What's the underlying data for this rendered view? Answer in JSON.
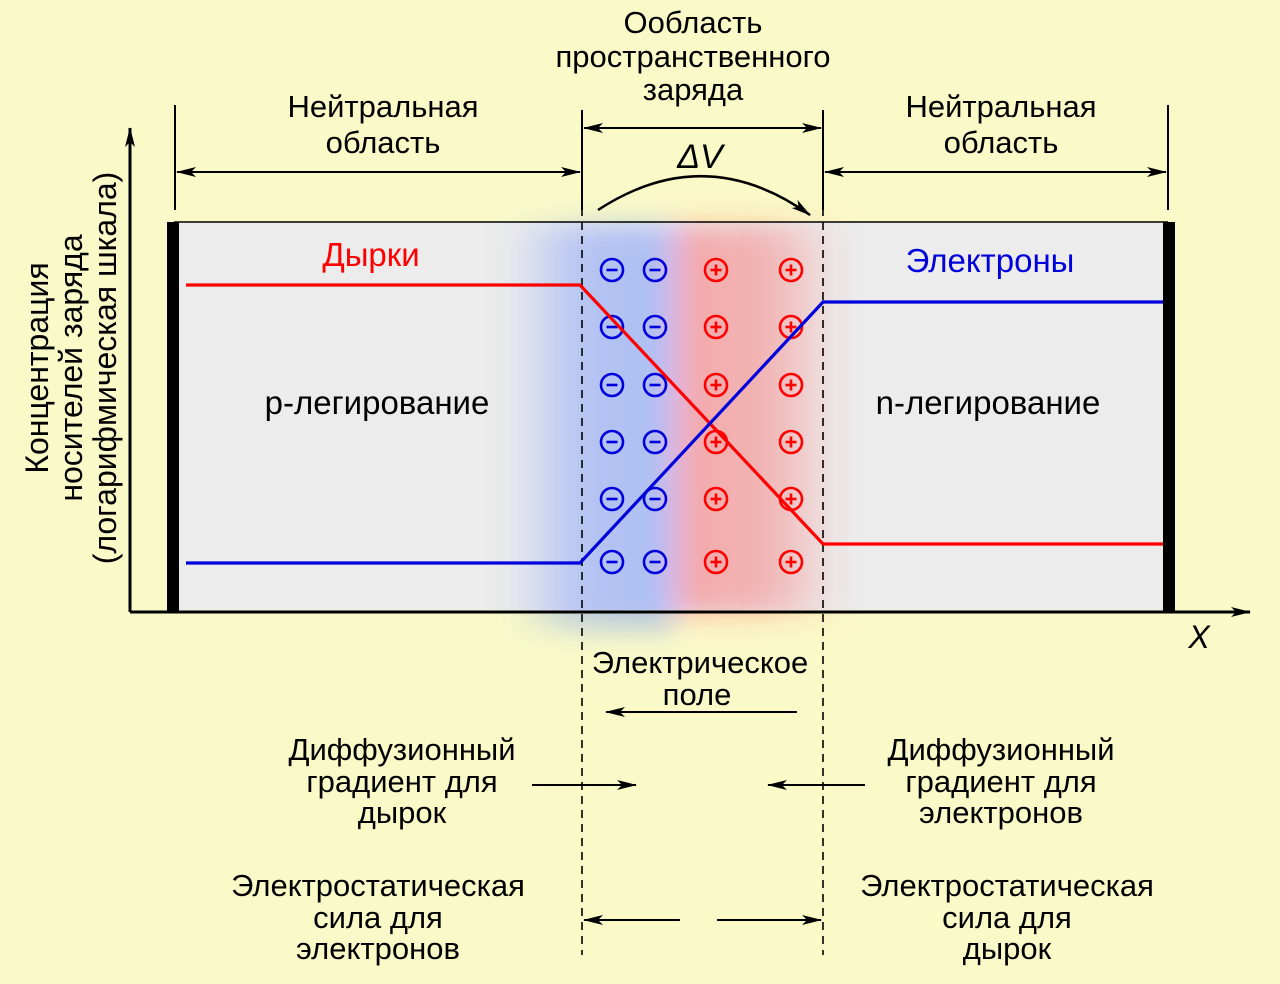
{
  "top": {
    "depletion_label": [
      "Ообласть",
      "пространственного",
      "заряда"
    ],
    "delta_v": "ΔV",
    "neutral_left": [
      "Нейтральная",
      "область"
    ],
    "neutral_right": [
      "Нейтральная",
      "область"
    ]
  },
  "y_axis_label": [
    "Концентрация",
    "носителей заряда",
    "(логарифмическая шкала)"
  ],
  "x_axis_label": "X",
  "carriers": {
    "holes": "Дырки",
    "electrons": "Электроны"
  },
  "regions": {
    "p": "p-легирование",
    "n": "n-легирование"
  },
  "bottom": {
    "field": [
      "Электрическое",
      "поле"
    ],
    "diff_holes": [
      "Диффузионный",
      "градиент для",
      "дырок"
    ],
    "diff_electrons": [
      "Диффузионный",
      "градиент для",
      "электронов"
    ],
    "force_electrons": [
      "Электростатическая",
      "сила для",
      "электронов"
    ],
    "force_holes": [
      "Электростатическая",
      "сила для",
      "дырок"
    ]
  },
  "colors": {
    "background": "#fafac8",
    "body": "#ececec",
    "holes": "#ff0000",
    "electrons": "#0000dd"
  }
}
